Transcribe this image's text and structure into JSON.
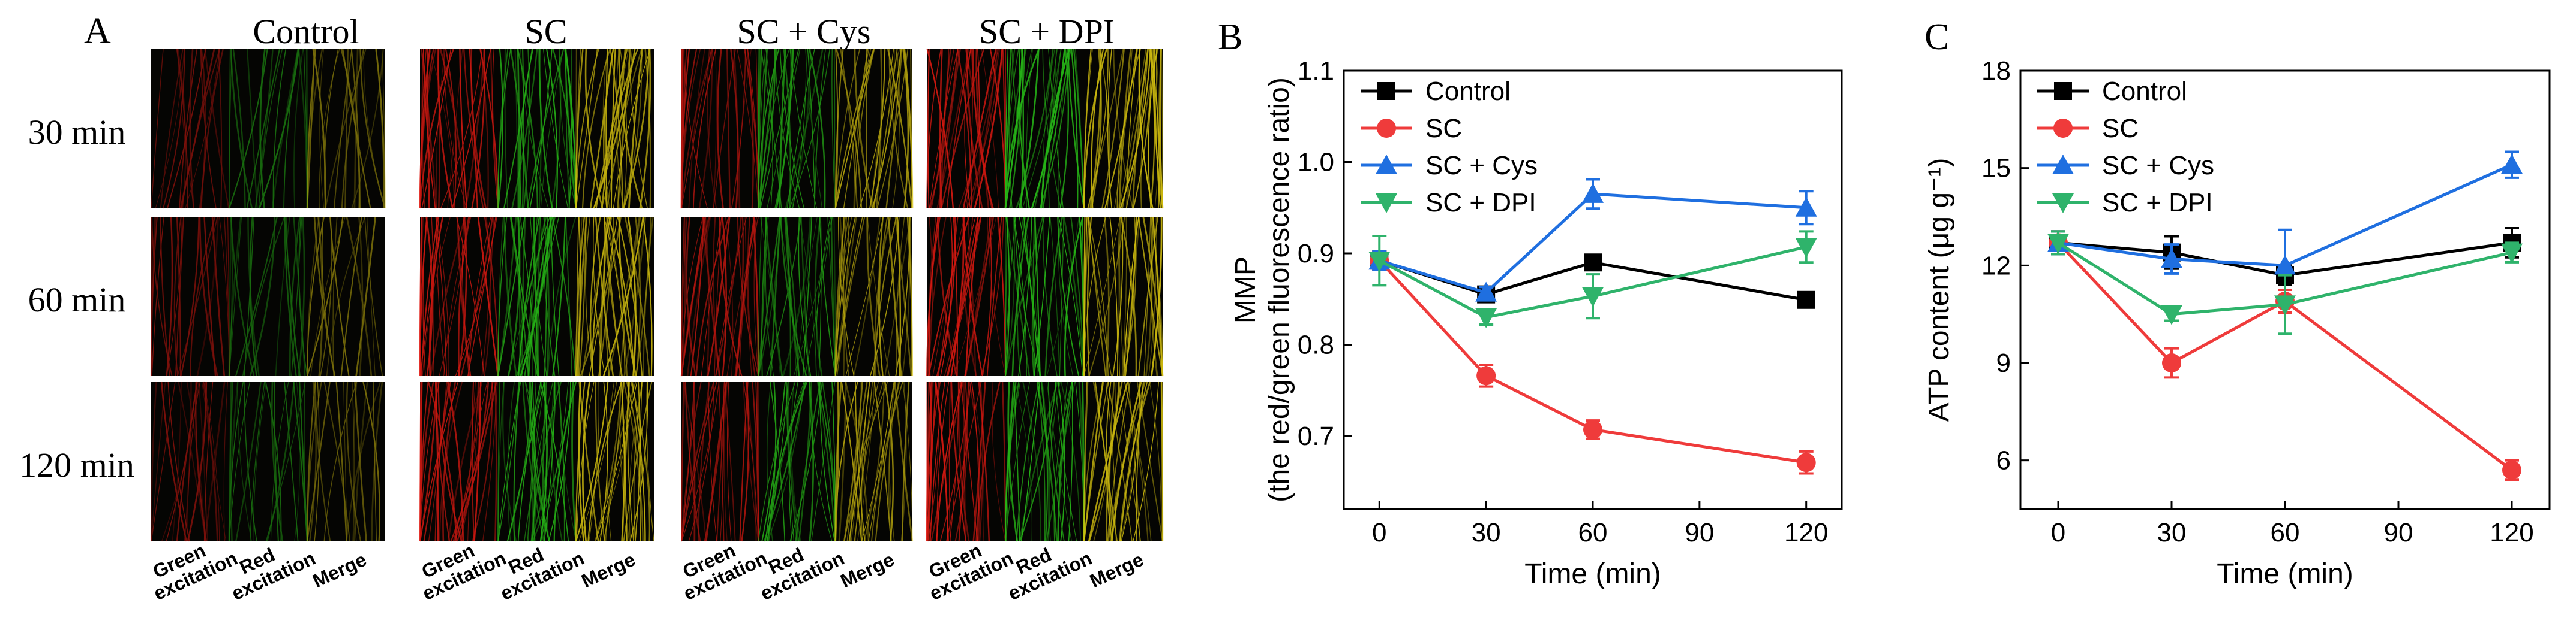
{
  "panel_a": {
    "letter": "A",
    "columns": [
      "Control",
      "SC",
      "SC + Cys",
      "SC + DPI"
    ],
    "rows": [
      "30 min",
      "60 min",
      "120 min"
    ],
    "channel_labels": [
      [
        "Green",
        "excitation"
      ],
      [
        "Red",
        "excitation"
      ],
      [
        "Merge"
      ]
    ]
  },
  "colors": {
    "control": "#000000",
    "sc": "#ef3b3b",
    "sc_cys": "#1f6fe0",
    "sc_dpi": "#2fb36b",
    "micro_bg": "#050503",
    "ch_red": "#e01a12",
    "ch_green": "#28c018",
    "ch_merge": "#d8c410"
  },
  "chart_data": [
    {
      "id": "B",
      "panel_letter": "B",
      "type": "line",
      "x": [
        0,
        30,
        60,
        120
      ],
      "xlabel": "Time (min)",
      "ylabel_lines": [
        "MMP",
        "(the red/green fluorescence ratio)"
      ],
      "xlim": [
        -10,
        130
      ],
      "ylim": [
        0.62,
        1.1
      ],
      "xticks": [
        0,
        30,
        60,
        90,
        120
      ],
      "yticks": [
        0.7,
        0.8,
        0.9,
        1.0,
        1.1
      ],
      "ytick_labels": [
        "0.7",
        "0.8",
        "0.9",
        "1.0",
        "1.1"
      ],
      "xtick_labels": [
        "0",
        "30",
        "60",
        "90",
        "120"
      ],
      "legend": "top-left",
      "series": [
        {
          "name": "Control",
          "color_key": "control",
          "marker": "square",
          "values": [
            0.892,
            0.855,
            0.89,
            0.849
          ],
          "errors": [
            0.01,
            0.006,
            0.005,
            0.004
          ]
        },
        {
          "name": "SC",
          "color_key": "sc",
          "marker": "circle",
          "values": [
            0.892,
            0.766,
            0.707,
            0.671
          ],
          "errors": [
            0.01,
            0.012,
            0.01,
            0.012
          ]
        },
        {
          "name": "SC + Cys",
          "color_key": "sc_cys",
          "marker": "triangle-up",
          "values": [
            0.892,
            0.857,
            0.965,
            0.95
          ],
          "errors": [
            0.01,
            0.006,
            0.016,
            0.018
          ]
        },
        {
          "name": "SC + DPI",
          "color_key": "sc_dpi",
          "marker": "triangle-down",
          "values": [
            0.892,
            0.83,
            0.853,
            0.907
          ],
          "errors": [
            0.027,
            0.008,
            0.024,
            0.017
          ]
        }
      ]
    },
    {
      "id": "C",
      "panel_letter": "C",
      "type": "line",
      "x": [
        0,
        30,
        60,
        120
      ],
      "xlabel": "Time (min)",
      "ylabel_lines": [
        "ATP content (μg g⁻¹)"
      ],
      "xlim": [
        -10,
        130
      ],
      "ylim": [
        4.5,
        18
      ],
      "xticks": [
        0,
        30,
        60,
        90,
        120
      ],
      "yticks": [
        6,
        9,
        12,
        15,
        18
      ],
      "ytick_labels": [
        "6",
        "9",
        "12",
        "15",
        "18"
      ],
      "xtick_labels": [
        "0",
        "30",
        "60",
        "90",
        "120"
      ],
      "legend": "top-left",
      "series": [
        {
          "name": "Control",
          "color_key": "control",
          "marker": "square",
          "values": [
            12.7,
            12.4,
            11.7,
            12.7
          ],
          "errors": [
            0.35,
            0.5,
            0.3,
            0.45
          ]
        },
        {
          "name": "SC",
          "color_key": "sc",
          "marker": "circle",
          "values": [
            12.7,
            9.0,
            10.9,
            5.7
          ],
          "errors": [
            0.35,
            0.45,
            0.35,
            0.3
          ]
        },
        {
          "name": "SC + Cys",
          "color_key": "sc_cys",
          "marker": "triangle-up",
          "values": [
            12.7,
            12.2,
            12.0,
            15.1
          ],
          "errors": [
            0.35,
            0.45,
            1.1,
            0.4
          ]
        },
        {
          "name": "SC + DPI",
          "color_key": "sc_dpi",
          "marker": "triangle-down",
          "values": [
            12.7,
            10.5,
            10.8,
            12.4
          ],
          "errors": [
            0.35,
            0.2,
            0.9,
            0.3
          ]
        }
      ]
    }
  ]
}
